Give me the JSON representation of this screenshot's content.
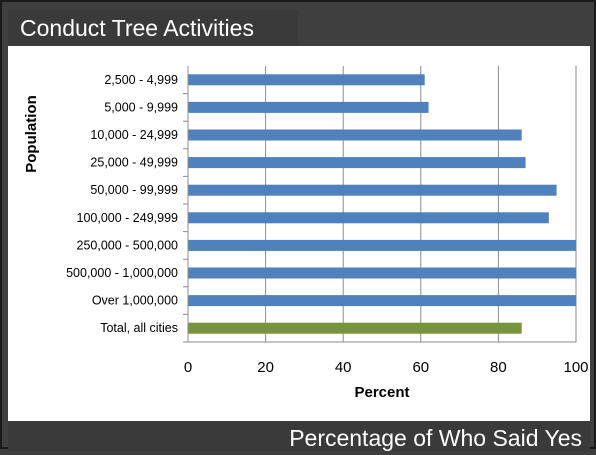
{
  "slide": {
    "title": "Conduct Tree Activities",
    "footer": "Percentage of Who Said Yes"
  },
  "colors": {
    "series": "#4f81bd",
    "total": "#77933c",
    "grid": "#8c8c8c"
  },
  "chart_data": {
    "type": "bar",
    "orientation": "horizontal",
    "title": "",
    "xlabel": "Percent",
    "ylabel": "Population",
    "xlim": [
      0,
      100
    ],
    "xticks": [
      0,
      20,
      40,
      60,
      80,
      100
    ],
    "grid": true,
    "legend": "none",
    "categories": [
      "2,500 - 4,999",
      "5,000 - 9,999",
      "10,000 - 24,999",
      "25,000 - 49,999",
      "50,000 - 99,999",
      "100,000 - 249,999",
      "250,000 - 500,000",
      "500,000 - 1,000,000",
      "Over 1,000,000",
      "Total, all cities"
    ],
    "values": [
      61,
      62,
      86,
      87,
      95,
      93,
      100,
      100,
      100,
      86
    ],
    "highlight_category": "Total, all cities"
  }
}
